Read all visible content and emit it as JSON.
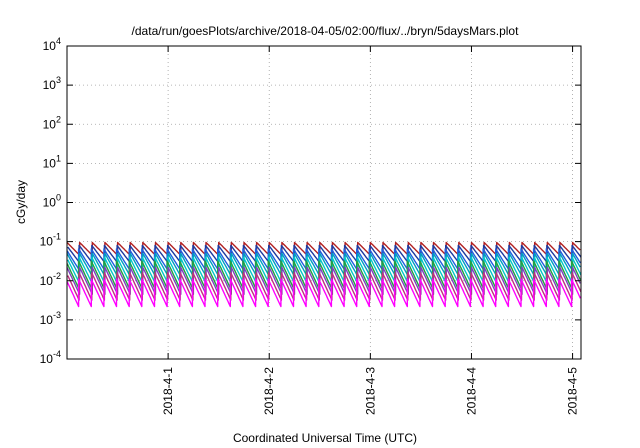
{
  "chart_data": {
    "type": "line",
    "title": "/data/run/goesPlots/archive/2018-04-05/02:00/flux/../bryn/5daysMars.plot",
    "xlabel": "Coordinated Universal Time (UTC)",
    "ylabel": "cGy/day",
    "x_range": [
      "2018-03-31 00:00",
      "2018-04-05 02:00"
    ],
    "x_ticks": [
      "2018-4-1",
      "2018-4-2",
      "2018-4-3",
      "2018-4-4",
      "2018-4-5"
    ],
    "x_tick_times": [
      "2018-04-01 00:00",
      "2018-04-02 00:00",
      "2018-04-03 00:00",
      "2018-04-04 00:00",
      "2018-04-05 00:00"
    ],
    "y_scale": "log",
    "ylim": [
      0.0001,
      10000
    ],
    "y_ticks": [
      {
        "base": "10",
        "exp": "-4"
      },
      {
        "base": "10",
        "exp": "-3"
      },
      {
        "base": "10",
        "exp": "-2"
      },
      {
        "base": "10",
        "exp": "-1"
      },
      {
        "base": "10",
        "exp": "0"
      },
      {
        "base": "10",
        "exp": "1"
      },
      {
        "base": "10",
        "exp": "2"
      },
      {
        "base": "10",
        "exp": "3"
      },
      {
        "base": "10",
        "exp": "4"
      }
    ],
    "grid": true,
    "legend": "none",
    "sawtooth_period_hours": 3,
    "series": [
      {
        "color": "#b22222",
        "peak": 0.095,
        "trough": 0.045
      },
      {
        "color": "#1e3a9e",
        "peak": 0.08,
        "trough": 0.03
      },
      {
        "color": "#2060e0",
        "peak": 0.065,
        "trough": 0.02
      },
      {
        "color": "#00a0c0",
        "peak": 0.05,
        "trough": 0.013
      },
      {
        "color": "#00c8c8",
        "peak": 0.04,
        "trough": 0.009
      },
      {
        "color": "#20a040",
        "peak": 0.032,
        "trough": 0.0065
      },
      {
        "color": "#8040c0",
        "peak": 0.022,
        "trough": 0.0045
      },
      {
        "color": "#c03080",
        "peak": 0.016,
        "trough": 0.0032
      },
      {
        "color": "#ff00ff",
        "peak": 0.011,
        "trough": 0.0022
      }
    ]
  }
}
